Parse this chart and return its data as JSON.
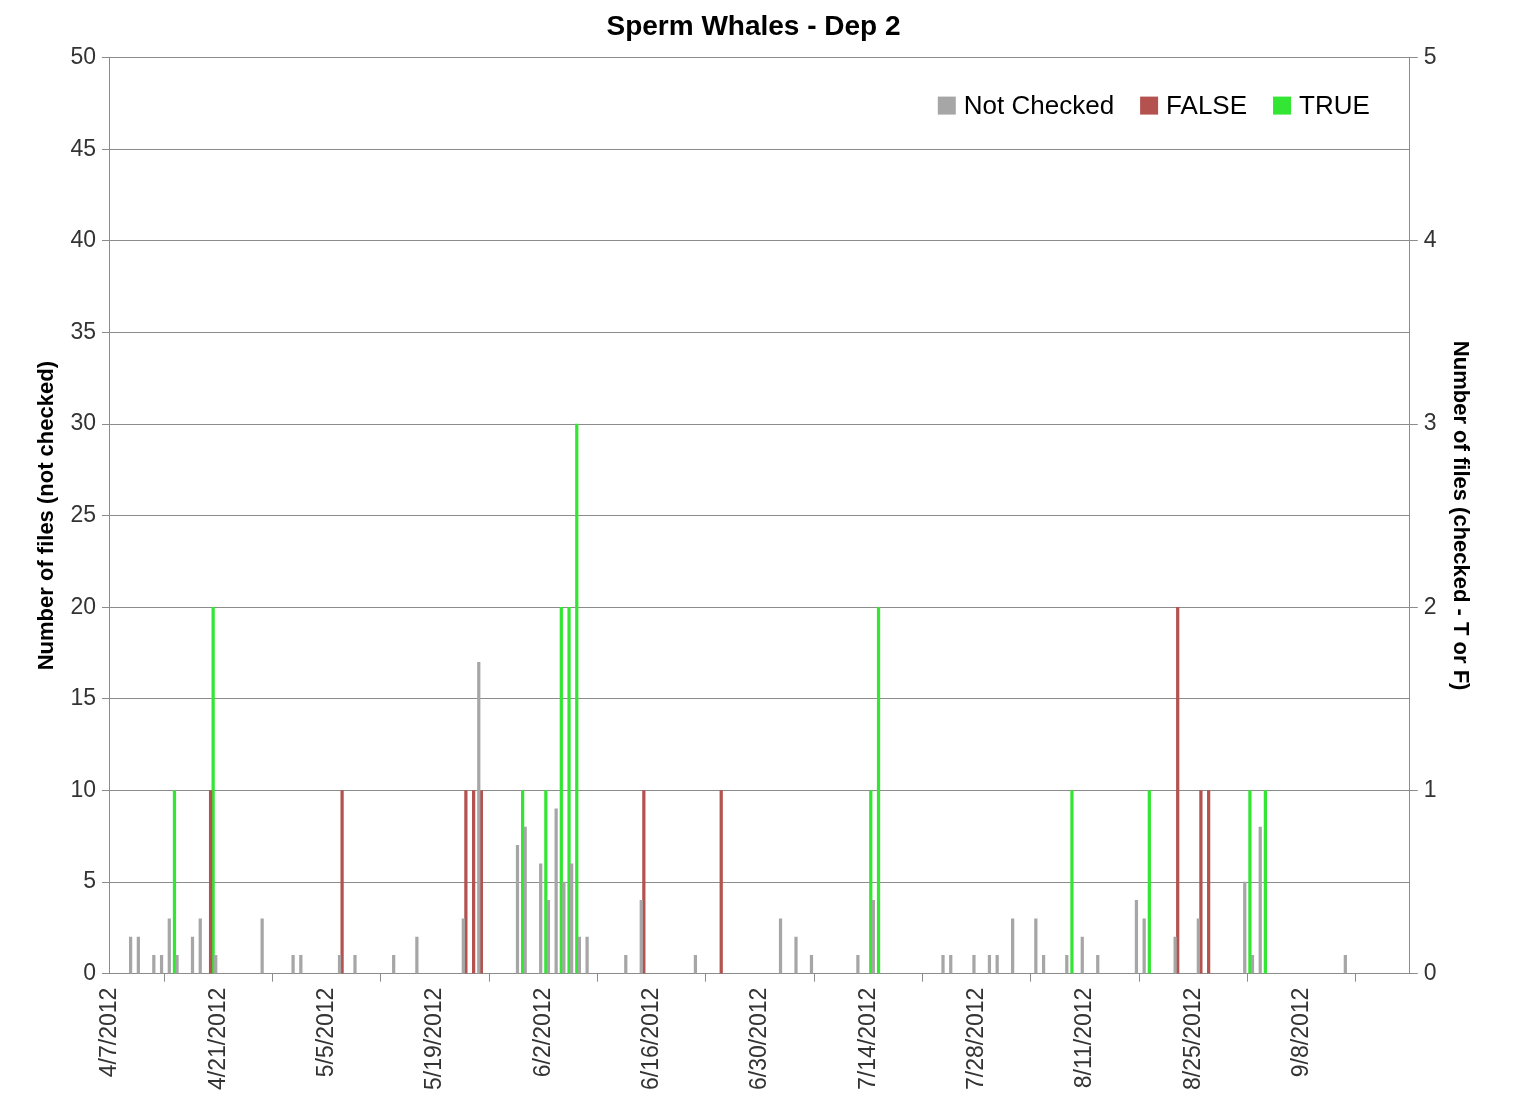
{
  "chart_data": {
    "type": "bar",
    "title": "Sperm Whales - Dep 2",
    "ylabel": "Number of files (not checked)",
    "y2label": "Number of files (checked - T or F)",
    "xlim": [
      "2012-04-07",
      "2012-09-22"
    ],
    "xticks": [
      {
        "value": "2012-04-07",
        "label": "4/7/2012"
      },
      {
        "value": "2012-04-21",
        "label": "4/21/2012"
      },
      {
        "value": "2012-05-05",
        "label": "5/5/2012"
      },
      {
        "value": "2012-05-19",
        "label": "5/19/2012"
      },
      {
        "value": "2012-06-02",
        "label": "6/2/2012"
      },
      {
        "value": "2012-06-16",
        "label": "6/16/2012"
      },
      {
        "value": "2012-06-30",
        "label": "6/30/2012"
      },
      {
        "value": "2012-07-14",
        "label": "7/14/2012"
      },
      {
        "value": "2012-07-28",
        "label": "7/28/2012"
      },
      {
        "value": "2012-08-11",
        "label": "8/11/2012"
      },
      {
        "value": "2012-08-25",
        "label": "8/25/2012"
      },
      {
        "value": "2012-09-08",
        "label": "9/8/2012"
      }
    ],
    "ylim": [
      0,
      50
    ],
    "yticks": [
      0,
      5,
      10,
      15,
      20,
      25,
      30,
      35,
      40,
      45,
      50
    ],
    "y2lim": [
      0,
      5
    ],
    "y2ticks": [
      0,
      1,
      2,
      3,
      4,
      5
    ],
    "grid": "y",
    "legend": "top right",
    "series": [
      {
        "name": "Not Checked",
        "color": "#a6a6a6",
        "x": [
          "2012-04-10",
          "2012-04-11",
          "2012-04-13",
          "2012-04-14",
          "2012-04-15",
          "2012-04-16",
          "2012-04-18",
          "2012-04-19",
          "2012-04-21",
          "2012-04-27",
          "2012-05-01",
          "2012-05-02",
          "2012-05-07",
          "2012-05-09",
          "2012-05-14",
          "2012-05-17",
          "2012-05-23",
          "2012-05-25",
          "2012-05-30",
          "2012-05-31",
          "2012-06-02",
          "2012-06-03",
          "2012-06-04",
          "2012-06-05",
          "2012-06-06",
          "2012-06-07",
          "2012-06-08",
          "2012-06-13",
          "2012-06-15",
          "2012-06-22",
          "2012-07-03",
          "2012-07-05",
          "2012-07-07",
          "2012-07-13",
          "2012-07-15",
          "2012-07-24",
          "2012-07-25",
          "2012-07-28",
          "2012-07-30",
          "2012-07-31",
          "2012-08-02",
          "2012-08-05",
          "2012-08-06",
          "2012-08-09",
          "2012-08-11",
          "2012-08-13",
          "2012-08-18",
          "2012-08-19",
          "2012-08-23",
          "2012-08-26",
          "2012-09-01",
          "2012-09-02",
          "2012-09-03",
          "2012-09-14"
        ],
        "values": [
          2,
          2,
          1,
          1,
          3,
          1,
          2,
          3,
          1,
          3,
          1,
          1,
          1,
          1,
          1,
          2,
          3,
          17,
          7,
          8,
          6,
          4,
          9,
          5,
          6,
          2,
          2,
          1,
          4,
          1,
          3,
          2,
          1,
          1,
          4,
          1,
          1,
          1,
          1,
          1,
          3,
          3,
          1,
          1,
          2,
          1,
          4,
          3,
          2,
          3,
          5,
          1,
          8,
          1
        ]
      },
      {
        "name": "FALSE",
        "color": "#b3524f",
        "axis": "y2",
        "x": [
          "2012-04-20",
          "2012-05-07",
          "2012-05-23",
          "2012-05-24",
          "2012-05-25",
          "2012-06-15",
          "2012-06-25",
          "2012-08-23",
          "2012-08-26",
          "2012-08-27"
        ],
        "values": [
          1,
          1,
          1,
          1,
          1,
          1,
          1,
          2,
          1,
          1
        ]
      },
      {
        "name": "TRUE",
        "color": "#33e633",
        "axis": "y2",
        "x": [
          "2012-04-15",
          "2012-04-20",
          "2012-05-30",
          "2012-06-02",
          "2012-06-04",
          "2012-06-05",
          "2012-06-06",
          "2012-07-14",
          "2012-07-15",
          "2012-08-09",
          "2012-08-19",
          "2012-09-01",
          "2012-09-03"
        ],
        "values": [
          1,
          2,
          1,
          1,
          2,
          2,
          3,
          1,
          2,
          1,
          1,
          1,
          1
        ]
      }
    ]
  }
}
